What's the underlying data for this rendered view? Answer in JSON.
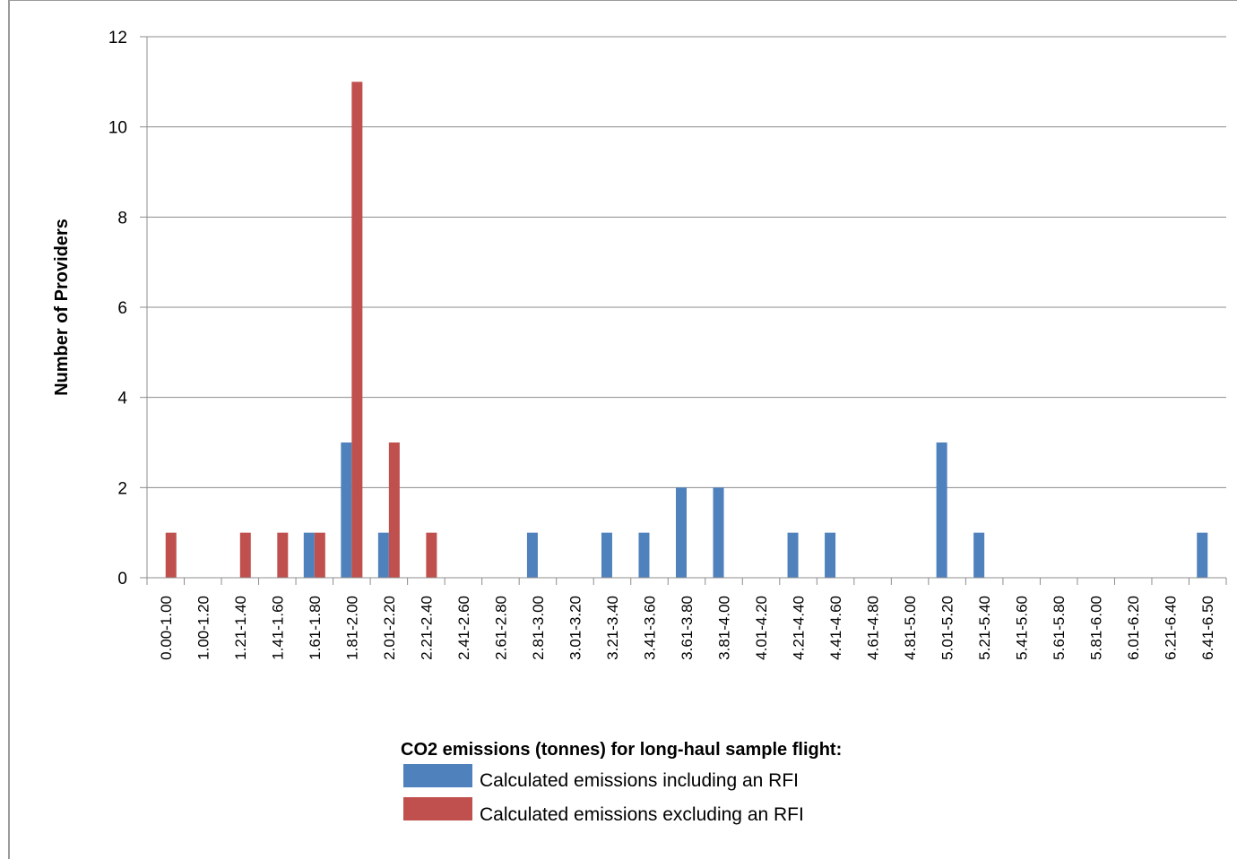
{
  "chart_data": {
    "type": "bar",
    "title": "",
    "xlabel": "",
    "ylabel": "Number of Providers",
    "ylim": [
      0,
      12
    ],
    "yticks": [
      0,
      2,
      4,
      6,
      8,
      10,
      12
    ],
    "grid": "horizontal",
    "legend_title": "CO2 emissions (tonnes) for long-haul sample flight:",
    "legend_position": "bottom",
    "categories": [
      "0.00-1.00",
      "1.00-1.20",
      "1.21-1.40",
      "1.41-1.60",
      "1.61-1.80",
      "1.81-2.00",
      "2.01-2.20",
      "2.21-2.40",
      "2.41-2.60",
      "2.61-2.80",
      "2.81-3.00",
      "3.01-3.20",
      "3.21-3.40",
      "3.41-3.60",
      "3.61-3.80",
      "3.81-4.00",
      "4.01-4.20",
      "4.21-4.40",
      "4.41-4.60",
      "4.61-4.80",
      "4.81-5.00",
      "5.01-5.20",
      "5.21-5.40",
      "5.41-5.60",
      "5.61-5.80",
      "5.81-6.00",
      "6.01-6.20",
      "6.21-6.40",
      "6.41-6.50"
    ],
    "series": [
      {
        "name": "Calculated emissions including an RFI",
        "color": "#4F81BD",
        "values": [
          0,
          0,
          0,
          0,
          1,
          3,
          1,
          0,
          0,
          0,
          1,
          0,
          1,
          1,
          2,
          2,
          0,
          1,
          1,
          0,
          0,
          3,
          1,
          0,
          0,
          0,
          0,
          0,
          1
        ]
      },
      {
        "name": "Calculated emissions excluding an RFI",
        "color": "#C0504D",
        "values": [
          1,
          0,
          1,
          1,
          1,
          11,
          3,
          1,
          0,
          0,
          0,
          0,
          0,
          0,
          0,
          0,
          0,
          0,
          0,
          0,
          0,
          0,
          0,
          0,
          0,
          0,
          0,
          0,
          0
        ]
      }
    ]
  }
}
